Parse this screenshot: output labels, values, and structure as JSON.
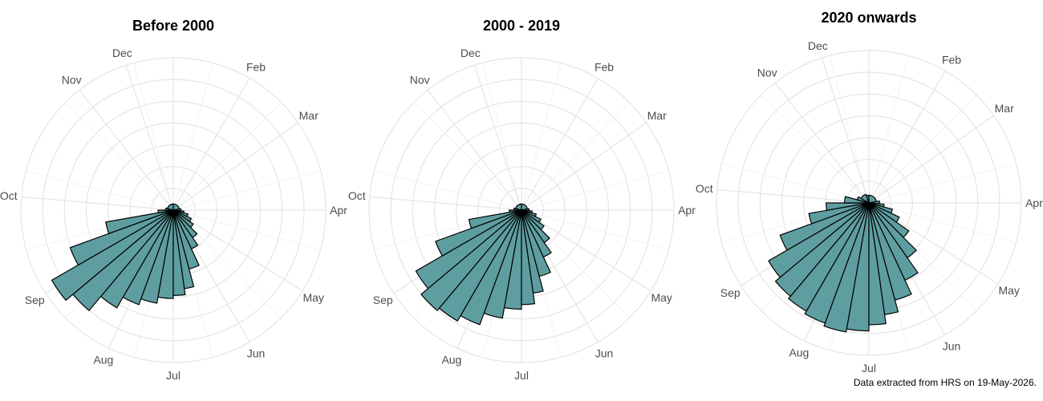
{
  "chart_data": [
    {
      "type": "polar-bar",
      "title": "Before 2000",
      "theta_labels": [
        "Dec",
        "Feb",
        "Mar",
        "Apr",
        "May",
        "Jun",
        "Jul",
        "Aug",
        "Sep",
        "Oct",
        "Nov"
      ],
      "bar_color": "#5f9ea0",
      "rlim": [
        0,
        1
      ],
      "grid": true,
      "bars": [
        {
          "start_deg": 180,
          "end_deg": 190,
          "value": 0.58
        },
        {
          "start_deg": 190,
          "end_deg": 200,
          "value": 0.62
        },
        {
          "start_deg": 200,
          "end_deg": 210,
          "value": 0.66
        },
        {
          "start_deg": 210,
          "end_deg": 220,
          "value": 0.74
        },
        {
          "start_deg": 220,
          "end_deg": 230,
          "value": 0.86
        },
        {
          "start_deg": 230,
          "end_deg": 240,
          "value": 0.92
        },
        {
          "start_deg": 240,
          "end_deg": 250,
          "value": 0.72
        },
        {
          "start_deg": 250,
          "end_deg": 260,
          "value": 0.45
        },
        {
          "start_deg": 260,
          "end_deg": 270,
          "value": 0.1
        },
        {
          "start_deg": 270,
          "end_deg": 285,
          "value": 0.05
        },
        {
          "start_deg": 285,
          "end_deg": 360,
          "value": 0.04
        },
        {
          "start_deg": 0,
          "end_deg": 80,
          "value": 0.04
        },
        {
          "start_deg": 80,
          "end_deg": 95,
          "value": 0.05
        },
        {
          "start_deg": 95,
          "end_deg": 105,
          "value": 0.07
        },
        {
          "start_deg": 105,
          "end_deg": 115,
          "value": 0.1
        },
        {
          "start_deg": 115,
          "end_deg": 125,
          "value": 0.13
        },
        {
          "start_deg": 125,
          "end_deg": 135,
          "value": 0.16
        },
        {
          "start_deg": 135,
          "end_deg": 145,
          "value": 0.22
        },
        {
          "start_deg": 145,
          "end_deg": 155,
          "value": 0.28
        },
        {
          "start_deg": 155,
          "end_deg": 165,
          "value": 0.4
        },
        {
          "start_deg": 165,
          "end_deg": 172,
          "value": 0.52
        },
        {
          "start_deg": 172,
          "end_deg": 180,
          "value": 0.56
        }
      ]
    },
    {
      "type": "polar-bar",
      "title": "2000 - 2019",
      "theta_labels": [
        "Dec",
        "Feb",
        "Mar",
        "Apr",
        "May",
        "Jun",
        "Jul",
        "Aug",
        "Sep",
        "Oct",
        "Nov"
      ],
      "bar_color": "#5f9ea0",
      "rlim": [
        0,
        1
      ],
      "grid": true,
      "bars": [
        {
          "start_deg": 180,
          "end_deg": 190,
          "value": 0.65
        },
        {
          "start_deg": 190,
          "end_deg": 200,
          "value": 0.72
        },
        {
          "start_deg": 200,
          "end_deg": 210,
          "value": 0.8
        },
        {
          "start_deg": 210,
          "end_deg": 220,
          "value": 0.84
        },
        {
          "start_deg": 220,
          "end_deg": 230,
          "value": 0.86
        },
        {
          "start_deg": 230,
          "end_deg": 240,
          "value": 0.8
        },
        {
          "start_deg": 240,
          "end_deg": 250,
          "value": 0.6
        },
        {
          "start_deg": 250,
          "end_deg": 260,
          "value": 0.35
        },
        {
          "start_deg": 260,
          "end_deg": 270,
          "value": 0.08
        },
        {
          "start_deg": 270,
          "end_deg": 285,
          "value": 0.05
        },
        {
          "start_deg": 285,
          "end_deg": 360,
          "value": 0.04
        },
        {
          "start_deg": 0,
          "end_deg": 80,
          "value": 0.04
        },
        {
          "start_deg": 80,
          "end_deg": 95,
          "value": 0.05
        },
        {
          "start_deg": 95,
          "end_deg": 105,
          "value": 0.07
        },
        {
          "start_deg": 105,
          "end_deg": 115,
          "value": 0.1
        },
        {
          "start_deg": 115,
          "end_deg": 125,
          "value": 0.14
        },
        {
          "start_deg": 125,
          "end_deg": 135,
          "value": 0.18
        },
        {
          "start_deg": 135,
          "end_deg": 145,
          "value": 0.26
        },
        {
          "start_deg": 145,
          "end_deg": 155,
          "value": 0.34
        },
        {
          "start_deg": 155,
          "end_deg": 165,
          "value": 0.45
        },
        {
          "start_deg": 165,
          "end_deg": 172,
          "value": 0.55
        },
        {
          "start_deg": 172,
          "end_deg": 180,
          "value": 0.62
        }
      ]
    },
    {
      "type": "polar-bar",
      "title": "2020 onwards",
      "theta_labels": [
        "Dec",
        "Feb",
        "Mar",
        "Apr",
        "May",
        "Jun",
        "Jul",
        "Aug",
        "Sep",
        "Oct",
        "Nov"
      ],
      "bar_color": "#5f9ea0",
      "rlim": [
        0,
        1
      ],
      "grid": true,
      "bars": [
        {
          "start_deg": 180,
          "end_deg": 190,
          "value": 0.84
        },
        {
          "start_deg": 190,
          "end_deg": 200,
          "value": 0.86
        },
        {
          "start_deg": 200,
          "end_deg": 210,
          "value": 0.84
        },
        {
          "start_deg": 210,
          "end_deg": 220,
          "value": 0.82
        },
        {
          "start_deg": 220,
          "end_deg": 230,
          "value": 0.8
        },
        {
          "start_deg": 230,
          "end_deg": 240,
          "value": 0.76
        },
        {
          "start_deg": 240,
          "end_deg": 250,
          "value": 0.62
        },
        {
          "start_deg": 250,
          "end_deg": 260,
          "value": 0.4
        },
        {
          "start_deg": 260,
          "end_deg": 270,
          "value": 0.28
        },
        {
          "start_deg": 270,
          "end_deg": 285,
          "value": 0.16
        },
        {
          "start_deg": 285,
          "end_deg": 300,
          "value": 0.08
        },
        {
          "start_deg": 300,
          "end_deg": 340,
          "value": 0.06
        },
        {
          "start_deg": 340,
          "end_deg": 360,
          "value": 0.05
        },
        {
          "start_deg": 0,
          "end_deg": 80,
          "value": 0.05
        },
        {
          "start_deg": 80,
          "end_deg": 95,
          "value": 0.07
        },
        {
          "start_deg": 95,
          "end_deg": 105,
          "value": 0.1
        },
        {
          "start_deg": 105,
          "end_deg": 115,
          "value": 0.16
        },
        {
          "start_deg": 115,
          "end_deg": 125,
          "value": 0.22
        },
        {
          "start_deg": 125,
          "end_deg": 135,
          "value": 0.32
        },
        {
          "start_deg": 135,
          "end_deg": 145,
          "value": 0.44
        },
        {
          "start_deg": 145,
          "end_deg": 155,
          "value": 0.56
        },
        {
          "start_deg": 155,
          "end_deg": 165,
          "value": 0.66
        },
        {
          "start_deg": 165,
          "end_deg": 172,
          "value": 0.74
        },
        {
          "start_deg": 172,
          "end_deg": 180,
          "value": 0.8
        }
      ]
    }
  ],
  "caption": "Data extracted from HRS on 19-May-2026."
}
